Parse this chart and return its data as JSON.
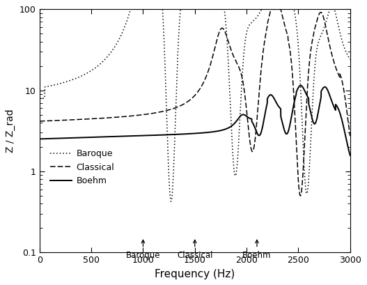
{
  "title": "",
  "xlabel": "Frequency (Hz)",
  "ylabel": "Z / Z_rad",
  "xlim": [
    0,
    3000
  ],
  "ylim_log": [
    0.1,
    100
  ],
  "xticklabels": [
    "0",
    "500",
    "1000",
    "1500",
    "2000",
    "2500",
    "3000"
  ],
  "legend_labels": [
    "Baroque",
    "Classical",
    "Boehm"
  ],
  "cutoff_baroque": 1000,
  "cutoff_classical": 1500,
  "cutoff_boehm": 2100,
  "line_color": "black",
  "background_color": "white"
}
